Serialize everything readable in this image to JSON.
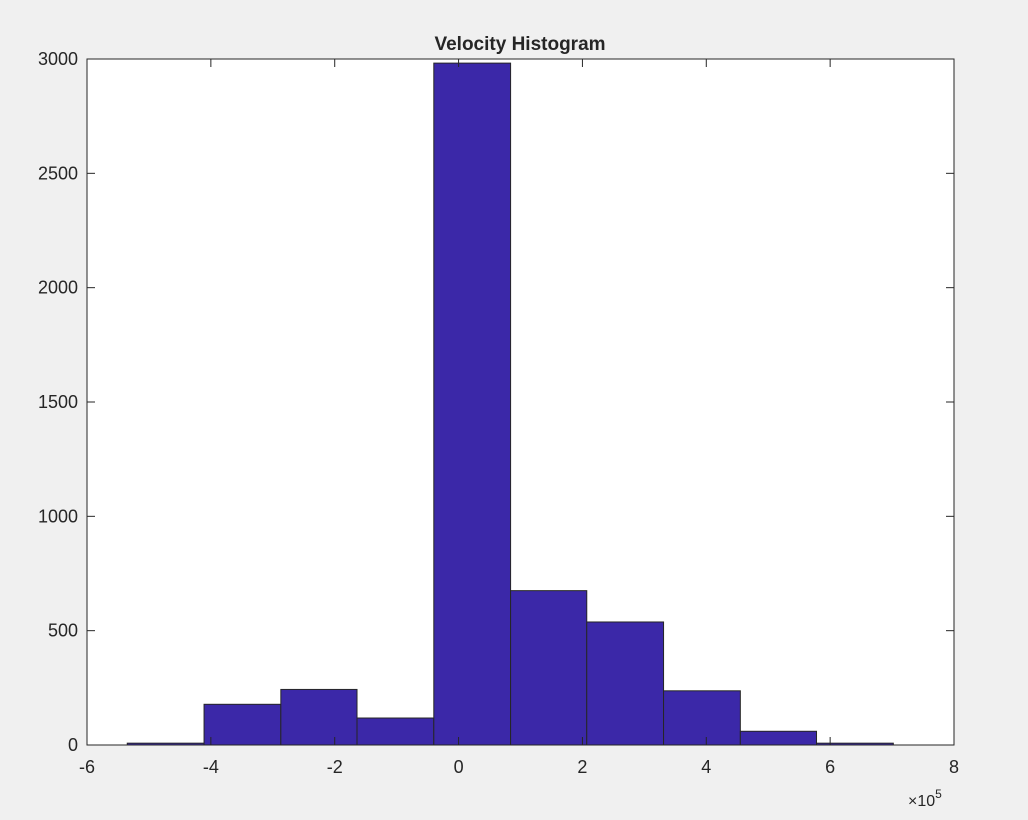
{
  "chart_data": {
    "type": "bar",
    "title": "Velocity Histogram",
    "xlabel": "",
    "ylabel": "",
    "x_exponent_label": {
      "base": "×10",
      "exponent": "5"
    },
    "xlim": [
      -6,
      8
    ],
    "ylim": [
      0,
      3000
    ],
    "xticks": [
      -6,
      -4,
      -2,
      0,
      2,
      4,
      6,
      8
    ],
    "xtick_labels": [
      "-6",
      "-4",
      "-2",
      "0",
      "2",
      "4",
      "6",
      "8"
    ],
    "yticks": [
      0,
      500,
      1000,
      1500,
      2000,
      2500,
      3000
    ],
    "ytick_labels": [
      "0",
      "500",
      "1000",
      "1500",
      "2000",
      "2500",
      "3000"
    ],
    "bin_edges": [
      -5.35,
      -4.11,
      -2.87,
      -1.64,
      -0.4,
      0.84,
      2.07,
      3.31,
      4.55,
      5.78,
      7.02
    ],
    "values": [
      8,
      178,
      243,
      118,
      2982,
      675,
      538,
      237,
      60,
      8
    ],
    "bar_color": "#3b28a8",
    "edge_color": "#262626",
    "grid": false,
    "legend": "none"
  }
}
